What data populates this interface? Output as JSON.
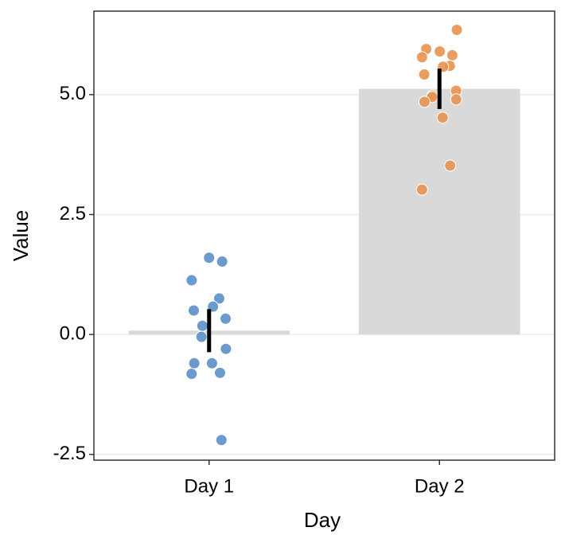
{
  "chart_data": {
    "type": "bar",
    "x_label": "Day",
    "y_label": "Value",
    "categories": [
      "Day 1",
      "Day 2"
    ],
    "values": [
      0.08,
      5.12
    ],
    "errors": [
      0.45,
      0.42
    ],
    "color": "#d9d9d9",
    "error_color": "#000000",
    "points": [
      [
        1.6,
        1.52,
        1.13,
        0.75,
        0.58,
        0.5,
        0.33,
        0.18,
        -0.05,
        -0.3,
        -0.6,
        -0.6,
        -0.8,
        -0.82,
        -2.2
      ],
      [
        6.35,
        5.95,
        5.9,
        5.82,
        5.78,
        5.6,
        5.58,
        5.42,
        5.08,
        4.98,
        4.95,
        4.9,
        4.85,
        4.52,
        3.52,
        3.02
      ]
    ],
    "point_colors": [
      "#5b8fc9",
      "#e8924f"
    ],
    "ylim": [
      -2.62,
      6.74
    ],
    "yticks": [
      -2.5,
      {
        "value": 0,
        "label": "0.0"
      },
      2.5,
      {
        "value": 5,
        "label": "5.0"
      }
    ],
    "grid": true
  }
}
